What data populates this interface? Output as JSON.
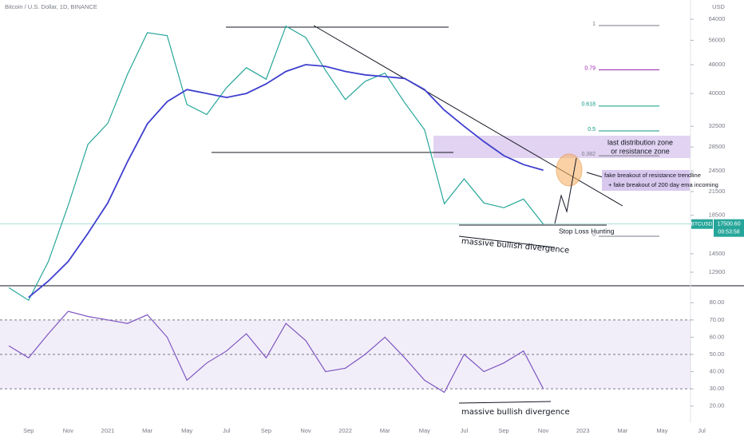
{
  "chart_data": [
    {
      "type": "line",
      "title": "Bitcoin / U.S. Dollar, 1D, BINANCE",
      "currency": "USD",
      "log_scale": true,
      "categories": [
        null,
        "Sep",
        null,
        "Nov",
        null,
        "2021",
        null,
        "Mar",
        null,
        "May",
        null,
        "Jul",
        null,
        "Sep",
        null,
        "Nov",
        null,
        "2022",
        null,
        "Mar",
        null,
        "May",
        null,
        "Jul",
        null,
        "Sep",
        null,
        "Nov",
        null,
        "2023",
        null,
        "Mar",
        null,
        "May",
        null,
        "Jul"
      ],
      "series": [
        {
          "color": "#26a69a",
          "values": [
            11700,
            10800,
            13800,
            19700,
            29000,
            33100,
            45200,
            58800,
            57700,
            37300,
            35000,
            41500,
            47100,
            43800,
            61300,
            57000,
            46300,
            38500,
            43200,
            45500,
            37700,
            31800,
            19900,
            23300,
            20000,
            19400,
            20500,
            17500,
            null,
            null,
            null,
            null,
            null,
            null,
            null,
            null
          ]
        },
        {
          "color": "#3f3fcf",
          "values": [
            null,
            11000,
            12200,
            13800,
            16500,
            20000,
            26000,
            33000,
            38000,
            41000,
            40000,
            39000,
            40000,
            42500,
            46000,
            48000,
            47500,
            46000,
            45000,
            44500,
            44000,
            41000,
            36000,
            32500,
            29500,
            27000,
            25500,
            24600,
            null,
            null,
            null,
            null,
            null,
            null,
            null,
            null
          ]
        }
      ],
      "ylim": [
        11840,
        72300
      ],
      "yticks": [
        64000,
        56000,
        48000,
        40000,
        32500,
        28500,
        24500,
        21500,
        18500,
        14500,
        12900
      ],
      "last_price": {
        "value": 17500.6,
        "label": "17500.60"
      },
      "symbol": "BTCUSD",
      "countdown": "09:53:58",
      "fib_levels": [
        1,
        0.79,
        0.618,
        0.5,
        0.382,
        0
      ],
      "fib_colors": [
        "#787b86",
        "#9c27b0",
        "#089981",
        "#089981",
        "#787b86",
        "#787b86"
      ],
      "annotations": [
        "last distribution zone",
        "or resistance zone",
        "fake breakout of resistance trendline",
        "+ fake breakout of 200 day ema incoming",
        "Stop Loss Hunting",
        "massive bullish divergence"
      ]
    },
    {
      "type": "line",
      "categories": [
        null,
        "Sep",
        null,
        "Nov",
        null,
        "2021",
        null,
        "Mar",
        null,
        "May",
        null,
        "Jul",
        null,
        "Sep",
        null,
        "Nov",
        null,
        "2022",
        null,
        "Mar",
        null,
        "May",
        null,
        "Jul",
        null,
        "Sep",
        null,
        "Nov",
        null,
        "2023",
        null,
        "Mar",
        null,
        "May",
        null,
        "Jul"
      ],
      "series": [
        {
          "color": "#7e57c2",
          "values": [
            55,
            48,
            62,
            75,
            72,
            70,
            68,
            73,
            60,
            35,
            45,
            52,
            62,
            48,
            68,
            58,
            40,
            42,
            50,
            60,
            48,
            35,
            28,
            50,
            40,
            45,
            52,
            30,
            null,
            null,
            null,
            null,
            null,
            null,
            null,
            null
          ]
        }
      ],
      "ylim": [
        12,
        88
      ],
      "yticks": [
        {
          "value": 80,
          "label": "80.00"
        },
        {
          "value": 70,
          "label": "70.00"
        },
        {
          "value": 60,
          "label": "60.00"
        },
        {
          "value": 50,
          "label": "50.00"
        },
        {
          "value": 40,
          "label": "40.00"
        },
        {
          "value": 30,
          "label": "30.00"
        },
        {
          "value": 20,
          "label": "20.00"
        }
      ],
      "annotations": [
        "massive bullish divergence"
      ]
    }
  ]
}
